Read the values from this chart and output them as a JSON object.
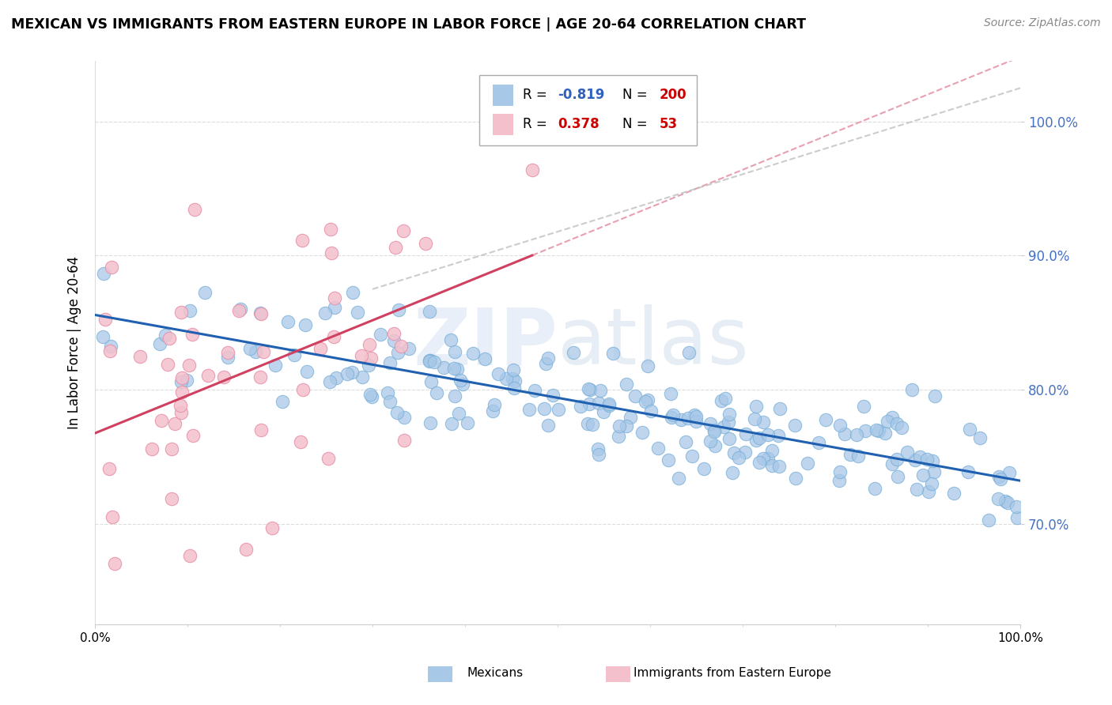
{
  "title": "MEXICAN VS IMMIGRANTS FROM EASTERN EUROPE IN LABOR FORCE | AGE 20-64 CORRELATION CHART",
  "source": "Source: ZipAtlas.com",
  "ylabel": "In Labor Force | Age 20-64",
  "legend_label_mexicans": "Mexicans",
  "legend_label_eastern": "Immigrants from Eastern Europe",
  "blue_color": "#a8c8e8",
  "blue_edge_color": "#7ab0d8",
  "pink_color": "#f4c0cc",
  "pink_edge_color": "#e890a8",
  "blue_line_color": "#2060b0",
  "pink_line_color": "#d04060",
  "pink_dashed_color": "#e8a0b0",
  "gray_dashed_color": "#c0c0c0",
  "r_blue": -0.819,
  "n_blue": 200,
  "r_pink": 0.378,
  "n_pink": 53,
  "xmin": 0.0,
  "xmax": 1.0,
  "ymin": 0.625,
  "ymax": 1.045,
  "yticks": [
    0.7,
    0.8,
    0.9,
    1.0
  ],
  "ytick_color": "#4472c4",
  "seed_blue": 42,
  "seed_pink": 7,
  "watermark_zip_color": "#c8d4e8",
  "watermark_atlas_color": "#b8cce0"
}
